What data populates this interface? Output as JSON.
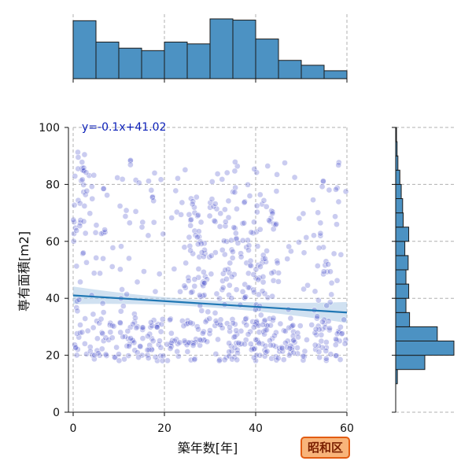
{
  "chart_data": {
    "type": "scatter",
    "xlabel": "築年数[年]",
    "ylabel": "専有面積[m2]",
    "xlim": [
      0,
      60
    ],
    "ylim": [
      0,
      100
    ],
    "xticks": [
      0,
      20,
      40,
      60
    ],
    "yticks": [
      0,
      20,
      40,
      60,
      80,
      100
    ],
    "grid": true,
    "annotation": "y=-0.1x+41.02",
    "regression": {
      "slope": -0.1,
      "intercept": 41.02
    },
    "badge": "昭和区",
    "colors": {
      "points": "#3f48c8",
      "regression_line": "#1f77b4",
      "confidence_band": "#a9c9e6",
      "histogram_fill": "#4c92c3",
      "annotation_text": "#0b1fb8",
      "badge_fill": "#f8b47a",
      "badge_border": "#e25c12"
    },
    "x_histogram": {
      "bin_edges": [
        0,
        5,
        10,
        15,
        20,
        25,
        30,
        35,
        40,
        45,
        50,
        55,
        60
      ],
      "counts": [
        95,
        60,
        50,
        46,
        60,
        57,
        98,
        96,
        65,
        30,
        22,
        13,
        4
      ]
    },
    "y_histogram": {
      "bin_edges": [
        10,
        15,
        20,
        25,
        30,
        35,
        40,
        45,
        50,
        55,
        60,
        65,
        70,
        75,
        80,
        85,
        90,
        95,
        100
      ],
      "counts": [
        6,
        105,
        210,
        150,
        50,
        37,
        47,
        37,
        45,
        33,
        47,
        27,
        25,
        20,
        15,
        8,
        5,
        3
      ]
    },
    "scatter_clusters": [
      {
        "x": [
          0,
          60
        ],
        "y": [
          18,
          33
        ],
        "count": 340
      },
      {
        "x": [
          0,
          60
        ],
        "y": [
          33,
          90
        ],
        "count": 230
      },
      {
        "x": [
          25,
          45
        ],
        "y": [
          40,
          75
        ],
        "count": 120
      },
      {
        "x": [
          0,
          3
        ],
        "y": [
          55,
          95
        ],
        "count": 25
      }
    ]
  }
}
